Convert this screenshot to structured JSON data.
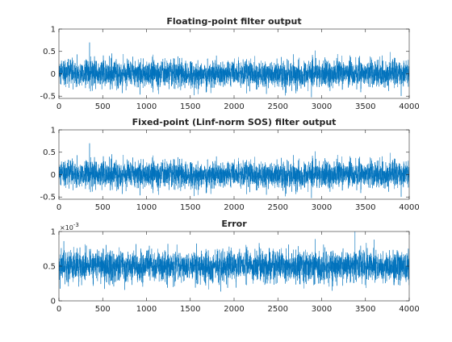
{
  "colors": {
    "series": "#0072BD",
    "axes": "#262626",
    "background": "#ffffff"
  },
  "chart_data": [
    {
      "type": "line",
      "title": "Floating-point filter output",
      "xlim": [
        0,
        4000
      ],
      "ylim": [
        -0.55,
        1
      ],
      "xticks": [
        0,
        500,
        1000,
        1500,
        2000,
        2500,
        3000,
        3500,
        4000
      ],
      "yticks": [
        -0.5,
        0,
        0.5,
        1
      ],
      "xtick_labels": [
        "0",
        "500",
        "1000",
        "1500",
        "2000",
        "2500",
        "3000",
        "3500",
        "4000"
      ],
      "ytick_labels": [
        "-0.5",
        "0",
        "0.5",
        "1"
      ],
      "series": [
        {
          "samples": 4000,
          "approx_mean": 0.0,
          "approx_std": 0.15,
          "approx_min": -0.55,
          "approx_max": 0.7,
          "notable_peak": {
            "x": 350,
            "y": 0.7
          }
        }
      ]
    },
    {
      "type": "line",
      "title": "Fixed-point (Linf-norm SOS) filter output",
      "xlim": [
        0,
        4000
      ],
      "ylim": [
        -0.55,
        1
      ],
      "xticks": [
        0,
        500,
        1000,
        1500,
        2000,
        2500,
        3000,
        3500,
        4000
      ],
      "yticks": [
        -0.5,
        0,
        0.5,
        1
      ],
      "xtick_labels": [
        "0",
        "500",
        "1000",
        "1500",
        "2000",
        "2500",
        "3000",
        "3500",
        "4000"
      ],
      "ytick_labels": [
        "-0.5",
        "0",
        "0.5",
        "1"
      ],
      "series": [
        {
          "samples": 4000,
          "approx_mean": 0.0,
          "approx_std": 0.15,
          "approx_min": -0.55,
          "approx_max": 0.7,
          "notable_peak": {
            "x": 350,
            "y": 0.7
          }
        }
      ]
    },
    {
      "type": "line",
      "title": "Error",
      "xlim": [
        0,
        4000
      ],
      "ylim": [
        0,
        0.001
      ],
      "axis_exponent": "×10",
      "axis_exponent_power": "-3",
      "xticks": [
        0,
        500,
        1000,
        1500,
        2000,
        2500,
        3000,
        3500,
        4000
      ],
      "yticks": [
        0,
        0.0005,
        0.001
      ],
      "xtick_labels": [
        "0",
        "500",
        "1000",
        "1500",
        "2000",
        "2500",
        "3000",
        "3500",
        "4000"
      ],
      "ytick_labels": [
        "0",
        "0.5",
        "1"
      ],
      "series": [
        {
          "samples": 4000,
          "approx_mean": 0.0005,
          "approx_std": 0.00011,
          "approx_min": 0.0,
          "approx_max": 0.001,
          "notable_peak": {
            "x": 3380,
            "y": 0.001
          }
        }
      ]
    }
  ]
}
